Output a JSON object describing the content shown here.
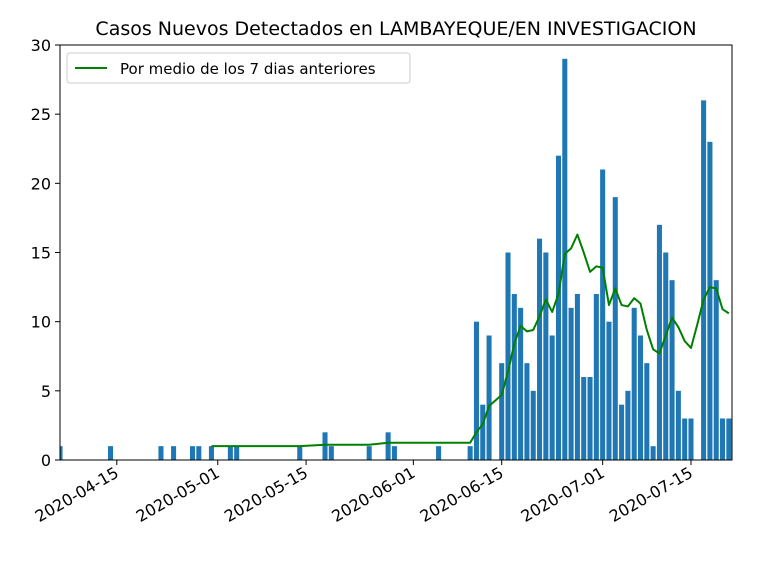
{
  "chart_data": {
    "type": "bar",
    "title": "Casos Nuevos Detectados en LAMBAYEQUE/EN INVESTIGACION",
    "xlabel": "",
    "ylabel": "",
    "x_start": "2020-04-06",
    "x_end": "2020-07-21",
    "ylim": [
      0,
      30
    ],
    "yticks": [
      0,
      5,
      10,
      15,
      20,
      25,
      30
    ],
    "xticks": [
      "2020-04-15",
      "2020-05-01",
      "2020-05-15",
      "2020-06-01",
      "2020-06-15",
      "2020-07-01",
      "2020-07-15"
    ],
    "grid": false,
    "legend_position": "top-left",
    "colors": {
      "bars": "#1f77b4",
      "line": "#008000"
    },
    "series": [
      {
        "type": "bar",
        "name": "",
        "points": [
          [
            "2020-04-06",
            1
          ],
          [
            "2020-04-14",
            1
          ],
          [
            "2020-04-22",
            1
          ],
          [
            "2020-04-24",
            1
          ],
          [
            "2020-04-27",
            1
          ],
          [
            "2020-04-28",
            1
          ],
          [
            "2020-04-30",
            1
          ],
          [
            "2020-05-03",
            1
          ],
          [
            "2020-05-04",
            1
          ],
          [
            "2020-05-14",
            1
          ],
          [
            "2020-05-18",
            2
          ],
          [
            "2020-05-19",
            1
          ],
          [
            "2020-05-25",
            1
          ],
          [
            "2020-05-28",
            2
          ],
          [
            "2020-05-29",
            1
          ],
          [
            "2020-06-05",
            1
          ],
          [
            "2020-06-10",
            1
          ],
          [
            "2020-06-11",
            10
          ],
          [
            "2020-06-12",
            4
          ],
          [
            "2020-06-13",
            9
          ],
          [
            "2020-06-15",
            7
          ],
          [
            "2020-06-16",
            15
          ],
          [
            "2020-06-17",
            12
          ],
          [
            "2020-06-18",
            11
          ],
          [
            "2020-06-19",
            7
          ],
          [
            "2020-06-20",
            5
          ],
          [
            "2020-06-21",
            16
          ],
          [
            "2020-06-22",
            15
          ],
          [
            "2020-06-23",
            9
          ],
          [
            "2020-06-24",
            22
          ],
          [
            "2020-06-25",
            29
          ],
          [
            "2020-06-26",
            11
          ],
          [
            "2020-06-27",
            12
          ],
          [
            "2020-06-28",
            6
          ],
          [
            "2020-06-29",
            6
          ],
          [
            "2020-06-30",
            12
          ],
          [
            "2020-07-01",
            21
          ],
          [
            "2020-07-02",
            10
          ],
          [
            "2020-07-03",
            19
          ],
          [
            "2020-07-04",
            4
          ],
          [
            "2020-07-05",
            5
          ],
          [
            "2020-07-06",
            11
          ],
          [
            "2020-07-07",
            9
          ],
          [
            "2020-07-08",
            7
          ],
          [
            "2020-07-09",
            1
          ],
          [
            "2020-07-10",
            17
          ],
          [
            "2020-07-11",
            15
          ],
          [
            "2020-07-12",
            13
          ],
          [
            "2020-07-13",
            5
          ],
          [
            "2020-07-14",
            3
          ],
          [
            "2020-07-15",
            3
          ],
          [
            "2020-07-17",
            26
          ],
          [
            "2020-07-18",
            23
          ],
          [
            "2020-07-19",
            13
          ],
          [
            "2020-07-20",
            3
          ],
          [
            "2020-07-21",
            3
          ]
        ]
      },
      {
        "type": "line",
        "name": "Por medio de los 7 dias anteriores",
        "points": [
          [
            "2020-04-30",
            1
          ],
          [
            "2020-05-14",
            1
          ],
          [
            "2020-05-18",
            1.1
          ],
          [
            "2020-05-25",
            1.1
          ],
          [
            "2020-05-28",
            1.25
          ],
          [
            "2020-06-10",
            1.25
          ],
          [
            "2020-06-11",
            2.0
          ],
          [
            "2020-06-12",
            2.6
          ],
          [
            "2020-06-13",
            3.9
          ],
          [
            "2020-06-15",
            4.7
          ],
          [
            "2020-06-16",
            6.4
          ],
          [
            "2020-06-17",
            8.4
          ],
          [
            "2020-06-18",
            9.7
          ],
          [
            "2020-06-19",
            9.3
          ],
          [
            "2020-06-20",
            9.4
          ],
          [
            "2020-06-21",
            10.4
          ],
          [
            "2020-06-22",
            11.6
          ],
          [
            "2020-06-23",
            10.7
          ],
          [
            "2020-06-24",
            12.0
          ],
          [
            "2020-06-25",
            14.9
          ],
          [
            "2020-06-26",
            15.3
          ],
          [
            "2020-06-27",
            16.3
          ],
          [
            "2020-06-28",
            15.0
          ],
          [
            "2020-06-29",
            13.6
          ],
          [
            "2020-06-30",
            14.0
          ],
          [
            "2020-07-01",
            13.9
          ],
          [
            "2020-07-02",
            11.2
          ],
          [
            "2020-07-03",
            12.4
          ],
          [
            "2020-07-04",
            11.2
          ],
          [
            "2020-07-05",
            11.1
          ],
          [
            "2020-07-06",
            11.7
          ],
          [
            "2020-07-07",
            11.3
          ],
          [
            "2020-07-08",
            9.4
          ],
          [
            "2020-07-09",
            8.0
          ],
          [
            "2020-07-10",
            7.7
          ],
          [
            "2020-07-11",
            9.0
          ],
          [
            "2020-07-12",
            10.3
          ],
          [
            "2020-07-13",
            9.6
          ],
          [
            "2020-07-14",
            8.6
          ],
          [
            "2020-07-15",
            8.1
          ],
          [
            "2020-07-16",
            9.8
          ],
          [
            "2020-07-17",
            11.6
          ],
          [
            "2020-07-18",
            12.5
          ],
          [
            "2020-07-19",
            12.4
          ],
          [
            "2020-07-20",
            10.9
          ],
          [
            "2020-07-21",
            10.6
          ]
        ]
      }
    ]
  }
}
